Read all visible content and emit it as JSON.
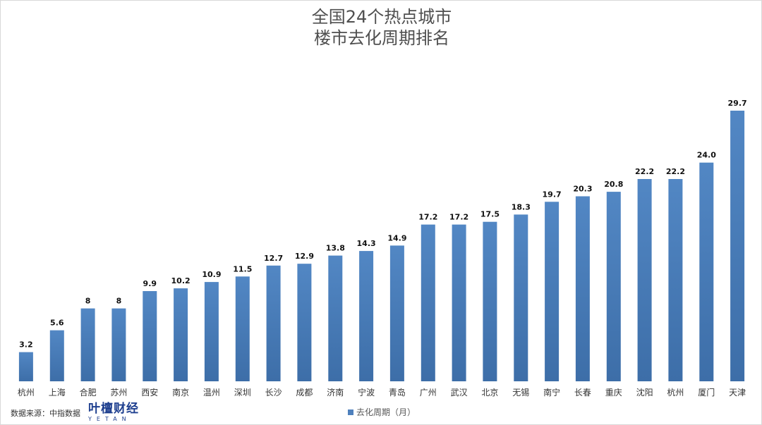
{
  "header": {
    "title_line1": "全国24个热点城市",
    "title_line2": "楼市去化周期排名"
  },
  "footer": {
    "source_text": "数据来源：中指数据",
    "brand_name": "叶檀财经",
    "brand_sub": "YETAN"
  },
  "colors": {
    "bar": "#4f81bd",
    "bar_dark": "#3a6aa3"
  },
  "chart_data": {
    "type": "bar",
    "title": "全国24个热点城市楼市去化周期排名",
    "categories": [
      "杭州",
      "上海",
      "合肥",
      "苏州",
      "西安",
      "南京",
      "温州",
      "深圳",
      "长沙",
      "成都",
      "济南",
      "宁波",
      "青岛",
      "广州",
      "武汉",
      "北京",
      "无锡",
      "南宁",
      "长春",
      "重庆",
      "沈阳",
      "杭州",
      "厦门",
      "天津"
    ],
    "series": [
      {
        "name": "去化周期（月）",
        "values": [
          3.2,
          5.6,
          8,
          8,
          9.9,
          10.2,
          10.9,
          11.5,
          12.7,
          12.9,
          13.8,
          14.3,
          14.9,
          17.2,
          17.2,
          17.5,
          18.3,
          19.7,
          20.3,
          20.8,
          22.2,
          22.2,
          24.0,
          29.7
        ],
        "labels": [
          "3.2",
          "5.6",
          "8",
          "8",
          "9.9",
          "10.2",
          "10.9",
          "11.5",
          "12.7",
          "12.9",
          "13.8",
          "14.3",
          "14.9",
          "17.2",
          "17.2",
          "17.5",
          "18.3",
          "19.7",
          "20.3",
          "20.8",
          "22.2",
          "22.2",
          "24.0",
          "29.7"
        ]
      }
    ],
    "ylim": [
      0,
      31
    ],
    "grid": false,
    "legend_position": "bottom"
  }
}
